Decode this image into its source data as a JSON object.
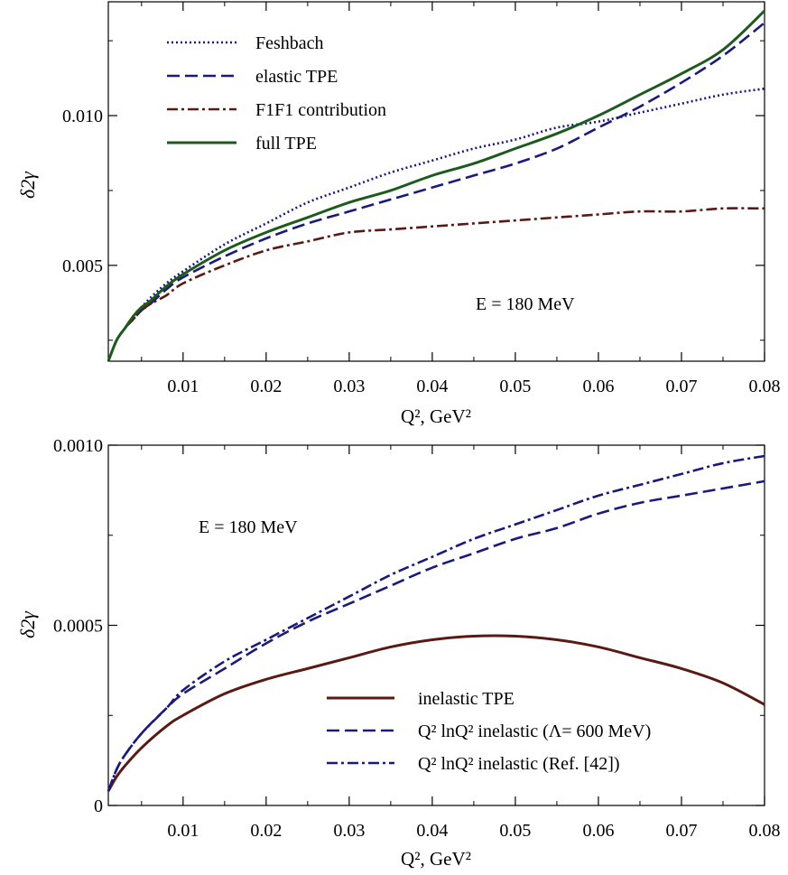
{
  "chart_data": [
    {
      "type": "line",
      "xlabel": "Q², GeV²",
      "ylabel": "δ2γ",
      "xlim": [
        0.001,
        0.08
      ],
      "ylim": [
        0.0018,
        0.0138
      ],
      "x_ticks": [
        "0.01",
        "0.02",
        "0.03",
        "0.04",
        "0.05",
        "0.06",
        "0.07",
        "0.08"
      ],
      "y_ticks": [
        "0.005",
        "0.010"
      ],
      "annotation": "E = 180 MeV",
      "legend_position": "top-left",
      "x": [
        0.001,
        0.002,
        0.003,
        0.004,
        0.005,
        0.006,
        0.008,
        0.01,
        0.015,
        0.02,
        0.025,
        0.03,
        0.035,
        0.04,
        0.045,
        0.05,
        0.055,
        0.06,
        0.065,
        0.07,
        0.075,
        0.08
      ],
      "series": [
        {
          "name": "Feshbach",
          "style": "dotted",
          "color": "#1a1a7a",
          "values": [
            0.0018,
            0.0025,
            0.0029,
            0.0033,
            0.0036,
            0.0039,
            0.0044,
            0.0048,
            0.0057,
            0.0064,
            0.0071,
            0.0076,
            0.0081,
            0.0085,
            0.0089,
            0.0092,
            0.0096,
            0.0098,
            0.0101,
            0.0104,
            0.0107,
            0.0109
          ]
        },
        {
          "name": "elastic TPE",
          "style": "dashed",
          "color": "#1a1a7a",
          "values": [
            0.0018,
            0.0025,
            0.0029,
            0.0032,
            0.0035,
            0.0037,
            0.0042,
            0.0046,
            0.0053,
            0.0059,
            0.0064,
            0.0068,
            0.0072,
            0.0076,
            0.008,
            0.0084,
            0.0089,
            0.0096,
            0.0103,
            0.0111,
            0.012,
            0.0131
          ]
        },
        {
          "name": "F1F1 contribution",
          "style": "dashdot",
          "color": "#5a1a14",
          "values": [
            0.0018,
            0.0025,
            0.0029,
            0.0032,
            0.0035,
            0.0037,
            0.004,
            0.0044,
            0.005,
            0.0055,
            0.0058,
            0.0061,
            0.0062,
            0.0063,
            0.0064,
            0.0065,
            0.0066,
            0.0067,
            0.0068,
            0.0068,
            0.0069,
            0.0069
          ]
        },
        {
          "name": "full TPE",
          "style": "solid",
          "color": "#1e5a1e",
          "values": [
            0.0018,
            0.0025,
            0.0029,
            0.0033,
            0.0036,
            0.0038,
            0.0043,
            0.0047,
            0.0055,
            0.0061,
            0.0066,
            0.0071,
            0.0075,
            0.008,
            0.0084,
            0.0089,
            0.0094,
            0.01,
            0.0107,
            0.0114,
            0.0122,
            0.0135
          ]
        }
      ]
    },
    {
      "type": "line",
      "xlabel": "Q², GeV²",
      "ylabel": "δ2γ",
      "xlim": [
        0.001,
        0.08
      ],
      "ylim": [
        0,
        0.001
      ],
      "x_ticks": [
        "0.01",
        "0.02",
        "0.03",
        "0.04",
        "0.05",
        "0.06",
        "0.07",
        "0.08"
      ],
      "y_ticks": [
        "0",
        "0.0005",
        "0.0010"
      ],
      "annotation": "E = 180 MeV",
      "legend_position": "bottom-right",
      "x": [
        0.001,
        0.002,
        0.003,
        0.005,
        0.008,
        0.01,
        0.015,
        0.02,
        0.025,
        0.03,
        0.035,
        0.04,
        0.045,
        0.05,
        0.055,
        0.06,
        0.065,
        0.07,
        0.075,
        0.08
      ],
      "series": [
        {
          "name": "inelastic TPE",
          "style": "solid",
          "color": "#5a1a14",
          "values": [
            4e-05,
            8e-05,
            0.00011,
            0.00016,
            0.00022,
            0.00025,
            0.00031,
            0.00035,
            0.00038,
            0.00041,
            0.00044,
            0.00046,
            0.00047,
            0.00047,
            0.00046,
            0.00044,
            0.00041,
            0.00038,
            0.00034,
            0.00028
          ]
        },
        {
          "name": "Q² lnQ² inelastic (Λ= 600 MeV)",
          "style": "dashed",
          "color": "#1a1a7a",
          "values": [
            4e-05,
            0.0001,
            0.00014,
            0.0002,
            0.00027,
            0.00031,
            0.00038,
            0.00045,
            0.00051,
            0.00056,
            0.00061,
            0.00066,
            0.0007,
            0.00074,
            0.00077,
            0.00081,
            0.00084,
            0.00086,
            0.00088,
            0.0009
          ]
        },
        {
          "name": "Q² lnQ² inelastic (Ref. [42])",
          "style": "dashdot",
          "color": "#1a1a7a",
          "values": [
            4e-05,
            0.0001,
            0.00014,
            0.0002,
            0.00027,
            0.00032,
            0.0004,
            0.00046,
            0.00052,
            0.00058,
            0.00064,
            0.00069,
            0.00074,
            0.00078,
            0.00082,
            0.00086,
            0.00089,
            0.00092,
            0.00095,
            0.00097
          ]
        }
      ]
    }
  ]
}
